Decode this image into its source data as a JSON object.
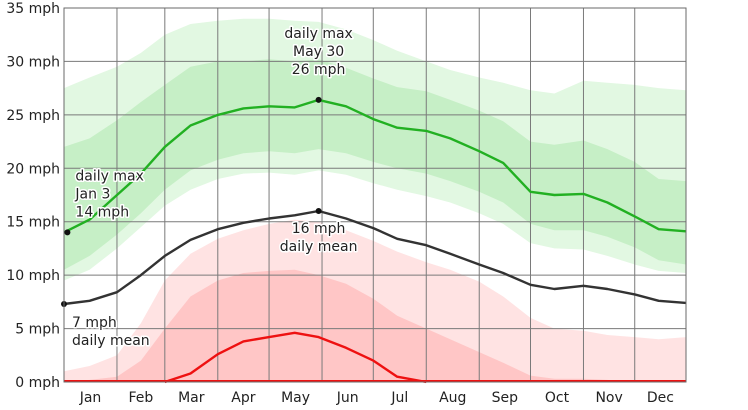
{
  "chart_data": {
    "type": "area",
    "title": "",
    "xlabel": "",
    "ylabel": "",
    "ylim": [
      0,
      35
    ],
    "y_tick_labels": [
      "0 mph",
      "5 mph",
      "10 mph",
      "15 mph",
      "20 mph",
      "25 mph",
      "30 mph",
      "35 mph"
    ],
    "y_ticks": [
      0,
      5,
      10,
      15,
      20,
      25,
      30,
      35
    ],
    "months": [
      "Jan",
      "Feb",
      "Mar",
      "Apr",
      "May",
      "Jun",
      "Jul",
      "Aug",
      "Sep",
      "Oct",
      "Nov",
      "Dec"
    ],
    "grid": true,
    "colors": {
      "max_line": "#22b022",
      "max_band_outer": "#e2f8e2",
      "max_band_mid": "#c6efc6",
      "max_band_inner": "#a9e6a9",
      "mean_line": "#333333",
      "min_line": "#ee1111",
      "min_band_outer": "#ffe3e3",
      "min_band_mid": "#ffc6c6",
      "min_band_inner": "#ffa8a8",
      "grid": "#7a7a7a"
    },
    "x_day_of_year": [
      1,
      16,
      32,
      46,
      60,
      75,
      91,
      106,
      121,
      136,
      150,
      166,
      182,
      196,
      213,
      227,
      244,
      258,
      274,
      288,
      305,
      319,
      335,
      349,
      365
    ],
    "series": [
      {
        "key": "daily_max",
        "values": [
          14,
          15.2,
          17.5,
          19.5,
          22,
          24,
          25,
          25.6,
          25.8,
          25.7,
          26.4,
          25.8,
          24.6,
          23.8,
          23.5,
          22.8,
          21.6,
          20.5,
          17.8,
          17.5,
          17.6,
          16.8,
          15.5,
          14.3,
          14.1
        ]
      },
      {
        "key": "daily_mean",
        "values": [
          7.3,
          7.6,
          8.4,
          10,
          11.8,
          13.3,
          14.3,
          14.9,
          15.3,
          15.6,
          16,
          15.3,
          14.4,
          13.4,
          12.8,
          12,
          11,
          10.2,
          9.1,
          8.7,
          9,
          8.7,
          8.2,
          7.6,
          7.4
        ]
      },
      {
        "key": "daily_min",
        "values": [
          0,
          0,
          0,
          0,
          0,
          0.8,
          2.6,
          3.8,
          4.2,
          4.6,
          4.2,
          3.2,
          2,
          0.5,
          0,
          0,
          0,
          0,
          0,
          0,
          0,
          0,
          0,
          0,
          0
        ]
      },
      {
        "key": "max_band_outer",
        "low": [
          9.5,
          10.5,
          12.5,
          14.5,
          16.5,
          18,
          19,
          19.5,
          19.6,
          19.4,
          19.8,
          19.4,
          18.6,
          18,
          17.4,
          16.8,
          15.8,
          14.8,
          13,
          12.5,
          12.4,
          11.8,
          11,
          10.4,
          10.2
        ],
        "high": [
          27.5,
          28.5,
          29.5,
          30.8,
          32.5,
          33.5,
          33.8,
          34,
          34,
          33.8,
          33.7,
          33,
          32,
          31,
          30,
          29.2,
          28.5,
          28,
          27.3,
          27,
          28.2,
          28,
          27.8,
          27.5,
          27.3
        ]
      },
      {
        "key": "max_band_inner",
        "low": [
          10.5,
          11.8,
          13.8,
          15.8,
          18,
          19.8,
          20.8,
          21.4,
          21.6,
          21.4,
          21.8,
          21.4,
          20.6,
          20,
          19.5,
          18.8,
          17.8,
          16.8,
          14.8,
          14.2,
          14.2,
          13.6,
          12.6,
          11.4,
          11
        ],
        "high": [
          22,
          22.8,
          24.5,
          26.2,
          27.8,
          29.5,
          30,
          30,
          30.2,
          30,
          30.2,
          29.4,
          28.4,
          27.6,
          27.2,
          26.4,
          25.4,
          24.4,
          22.5,
          22.2,
          22.6,
          21.8,
          20.6,
          19,
          18.8
        ]
      },
      {
        "key": "min_band_outer",
        "low": [
          0,
          0,
          0,
          0,
          0,
          0,
          0,
          0,
          0,
          0,
          0,
          0,
          0,
          0,
          0,
          0,
          0,
          0,
          0,
          0,
          0,
          0,
          0,
          0,
          0
        ],
        "high": [
          1,
          1.5,
          2.5,
          5.5,
          9.5,
          12,
          13.4,
          14.2,
          14.8,
          15.2,
          15,
          14.2,
          13.2,
          12.2,
          11.2,
          10.5,
          9.4,
          8,
          6,
          5,
          4.8,
          4.4,
          4.2,
          4,
          4.2
        ]
      },
      {
        "key": "min_band_inner",
        "low": [
          0,
          0,
          0,
          0,
          0,
          0,
          0,
          0,
          0,
          0,
          0,
          0,
          0,
          0,
          0,
          0,
          0,
          0,
          0,
          0,
          0,
          0,
          0,
          0,
          0
        ],
        "high": [
          0,
          0.2,
          0.5,
          2,
          5,
          8,
          9.5,
          10.2,
          10.4,
          10.5,
          10,
          9.2,
          7.8,
          6.2,
          5,
          4,
          2.8,
          1.8,
          0.6,
          0.3,
          0.3,
          0.2,
          0,
          0,
          0
        ]
      }
    ],
    "annotations": [
      {
        "key": "max_low",
        "lines": [
          "daily max",
          "Jan 3",
          "14 mph"
        ],
        "x_day": 3,
        "y": 14
      },
      {
        "key": "max_high",
        "lines": [
          "daily max",
          "May 30",
          "26 mph"
        ],
        "x_day": 150,
        "y": 26.4
      },
      {
        "key": "mean_high",
        "lines": [
          "16 mph",
          "daily mean"
        ],
        "x_day": 150,
        "y": 16
      },
      {
        "key": "mean_low",
        "lines": [
          "7 mph",
          "daily mean"
        ],
        "x_day": 1,
        "y": 7.3
      }
    ]
  }
}
